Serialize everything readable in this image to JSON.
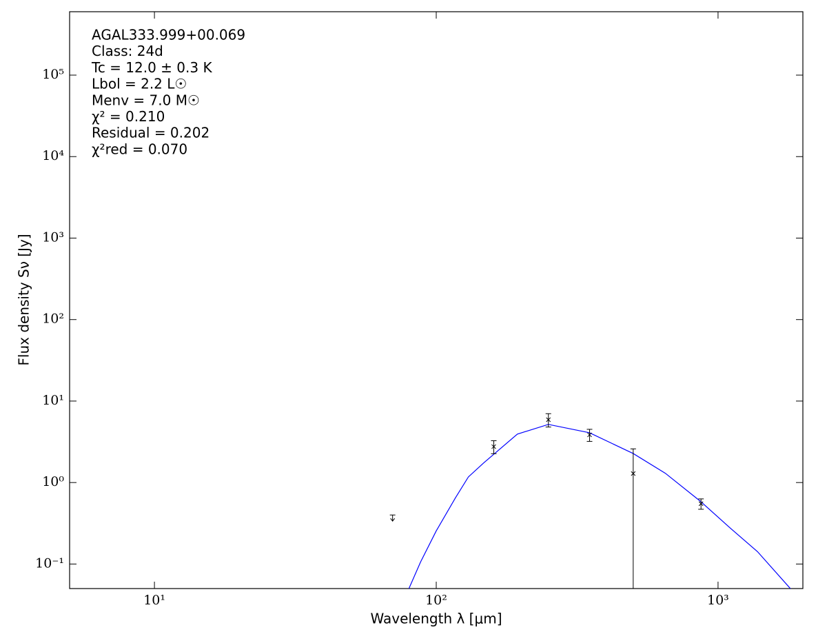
{
  "chart_data": {
    "type": "sed",
    "annotations": [
      "AGAL333.999+00.069",
      "Class: 24d",
      "Tc = 12.0 ± 0.3 K",
      "Lbol = 2.2 L☉",
      "Menv = 7.0 M☉",
      "χ² = 0.210",
      "Residual = 0.202",
      "χ²red = 0.070"
    ],
    "x_label": "Wavelength λ [μm]",
    "y_label": "Flux density Sν [Jy]",
    "x_log": true,
    "y_log": true,
    "xlim": [
      5,
      2000
    ],
    "ylim": [
      0.05,
      600000
    ],
    "xticks": [
      {
        "value": 10,
        "label": "10¹"
      },
      {
        "value": 100,
        "label": "10²"
      },
      {
        "value": 1000,
        "label": "10³"
      }
    ],
    "yticks": [
      {
        "value": 0.1,
        "label": "10⁻¹"
      },
      {
        "value": 1,
        "label": "10⁰"
      },
      {
        "value": 10,
        "label": "10¹"
      },
      {
        "value": 100,
        "label": "10²"
      },
      {
        "value": 1000,
        "label": "10³"
      },
      {
        "value": 10000,
        "label": "10⁴"
      },
      {
        "value": 100000,
        "label": "10⁵"
      }
    ],
    "detections": {
      "color": "#000000",
      "x": [
        160,
        250,
        350,
        500,
        870
      ],
      "values": [
        2.76,
        5.9,
        3.85,
        1.29,
        0.55
      ],
      "errors": [
        0.5,
        1.1,
        0.65,
        1.3,
        0.08
      ]
    },
    "upper_limits": {
      "color": "#000000",
      "x": [
        70
      ],
      "values": [
        0.4
      ]
    },
    "model": {
      "color": "#0000ff",
      "x": [
        80,
        88,
        100,
        117,
        130,
        147,
        194,
        250,
        350,
        500,
        650,
        865,
        1100,
        1380,
        1815
      ],
      "values": [
        0.05,
        0.106,
        0.255,
        0.65,
        1.17,
        1.73,
        3.93,
        5.17,
        4.08,
        2.27,
        1.3,
        0.59,
        0.28,
        0.142,
        0.049
      ]
    }
  }
}
